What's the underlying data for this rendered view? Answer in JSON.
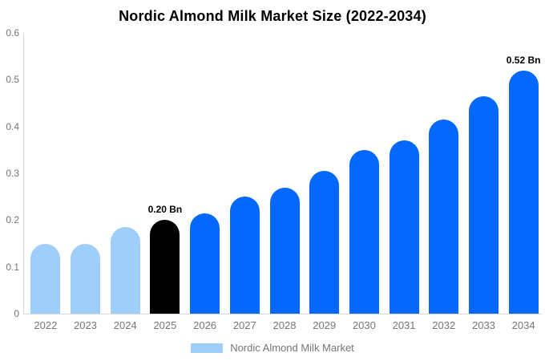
{
  "chart_data": {
    "type": "bar",
    "title": "Nordic Almond Milk Market Size (2022-2034)",
    "categories": [
      "2022",
      "2023",
      "2024",
      "2025",
      "2026",
      "2027",
      "2028",
      "2029",
      "2030",
      "2031",
      "2032",
      "2033",
      "2034"
    ],
    "series": [
      {
        "name": "Nordic Almond Milk Market",
        "values": [
          0.15,
          0.15,
          0.185,
          0.2,
          0.215,
          0.25,
          0.27,
          0.305,
          0.35,
          0.37,
          0.415,
          0.465,
          0.52
        ]
      }
    ],
    "bar_colors": [
      "#9fcefa",
      "#9fcefa",
      "#9fcefa",
      "#000000",
      "#0568fd",
      "#0568fd",
      "#0568fd",
      "#0568fd",
      "#0568fd",
      "#0568fd",
      "#0568fd",
      "#0568fd",
      "#0568fd"
    ],
    "xlabel": "",
    "ylabel": "",
    "ylim": [
      0,
      0.6
    ],
    "ytick_labels": [
      "0",
      "0.1",
      "0.2",
      "0.3",
      "0.4",
      "0.5",
      "0.6"
    ],
    "grid": false,
    "legend_position": "bottom",
    "annotations": [
      {
        "category": "2025",
        "text": "0.20 Bn"
      },
      {
        "category": "2034",
        "text": "0.52 Bn"
      }
    ]
  },
  "legend": {
    "label": "Nordic Almond Milk Market",
    "swatch_color": "#9fcefa"
  },
  "colors": {
    "historical_bar": "#9fcefa",
    "base_year_bar": "#000000",
    "forecast_bar": "#0568fd",
    "axis_line": "#d9d9d9",
    "tick_text": "#757575",
    "title_text": "#000000",
    "annotation_text": "#000000",
    "background": "#ffffff"
  }
}
